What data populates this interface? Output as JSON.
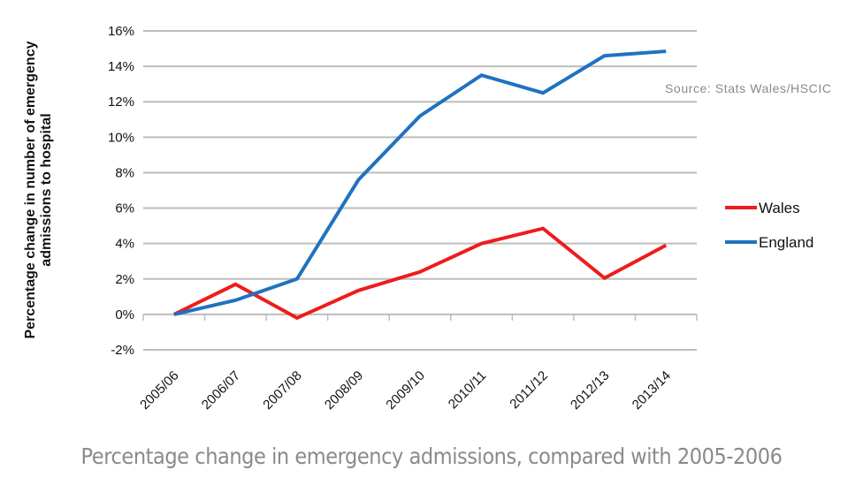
{
  "chart_data": {
    "type": "line",
    "title": "Percentage change in emergency admissions, compared with 2005-2006",
    "ylabel": "Percentage change in number of emergency admissions to hospital",
    "xlabel": "",
    "source": "Source: Stats Wales/HSCIC",
    "categories": [
      "2005/06",
      "2006/07",
      "2007/08",
      "2008/09",
      "2009/10",
      "2010/11",
      "2011/12",
      "2012/13",
      "2013/14"
    ],
    "ylim": [
      -2,
      16
    ],
    "yticks": [
      -2,
      0,
      2,
      4,
      6,
      8,
      10,
      12,
      14,
      16
    ],
    "ytick_labels": [
      "-2%",
      "0%",
      "2%",
      "4%",
      "6%",
      "8%",
      "10%",
      "12%",
      "14%",
      "16%"
    ],
    "grid": true,
    "legend_position": "right",
    "series": [
      {
        "name": "Wales",
        "color": "#ee1c1c",
        "values": [
          0,
          1.7,
          -0.2,
          1.35,
          2.4,
          4.0,
          4.85,
          2.05,
          3.9
        ]
      },
      {
        "name": "England",
        "color": "#1f72c0",
        "values": [
          0,
          0.8,
          2.0,
          7.6,
          11.2,
          13.5,
          12.5,
          14.6,
          14.85
        ]
      }
    ]
  }
}
